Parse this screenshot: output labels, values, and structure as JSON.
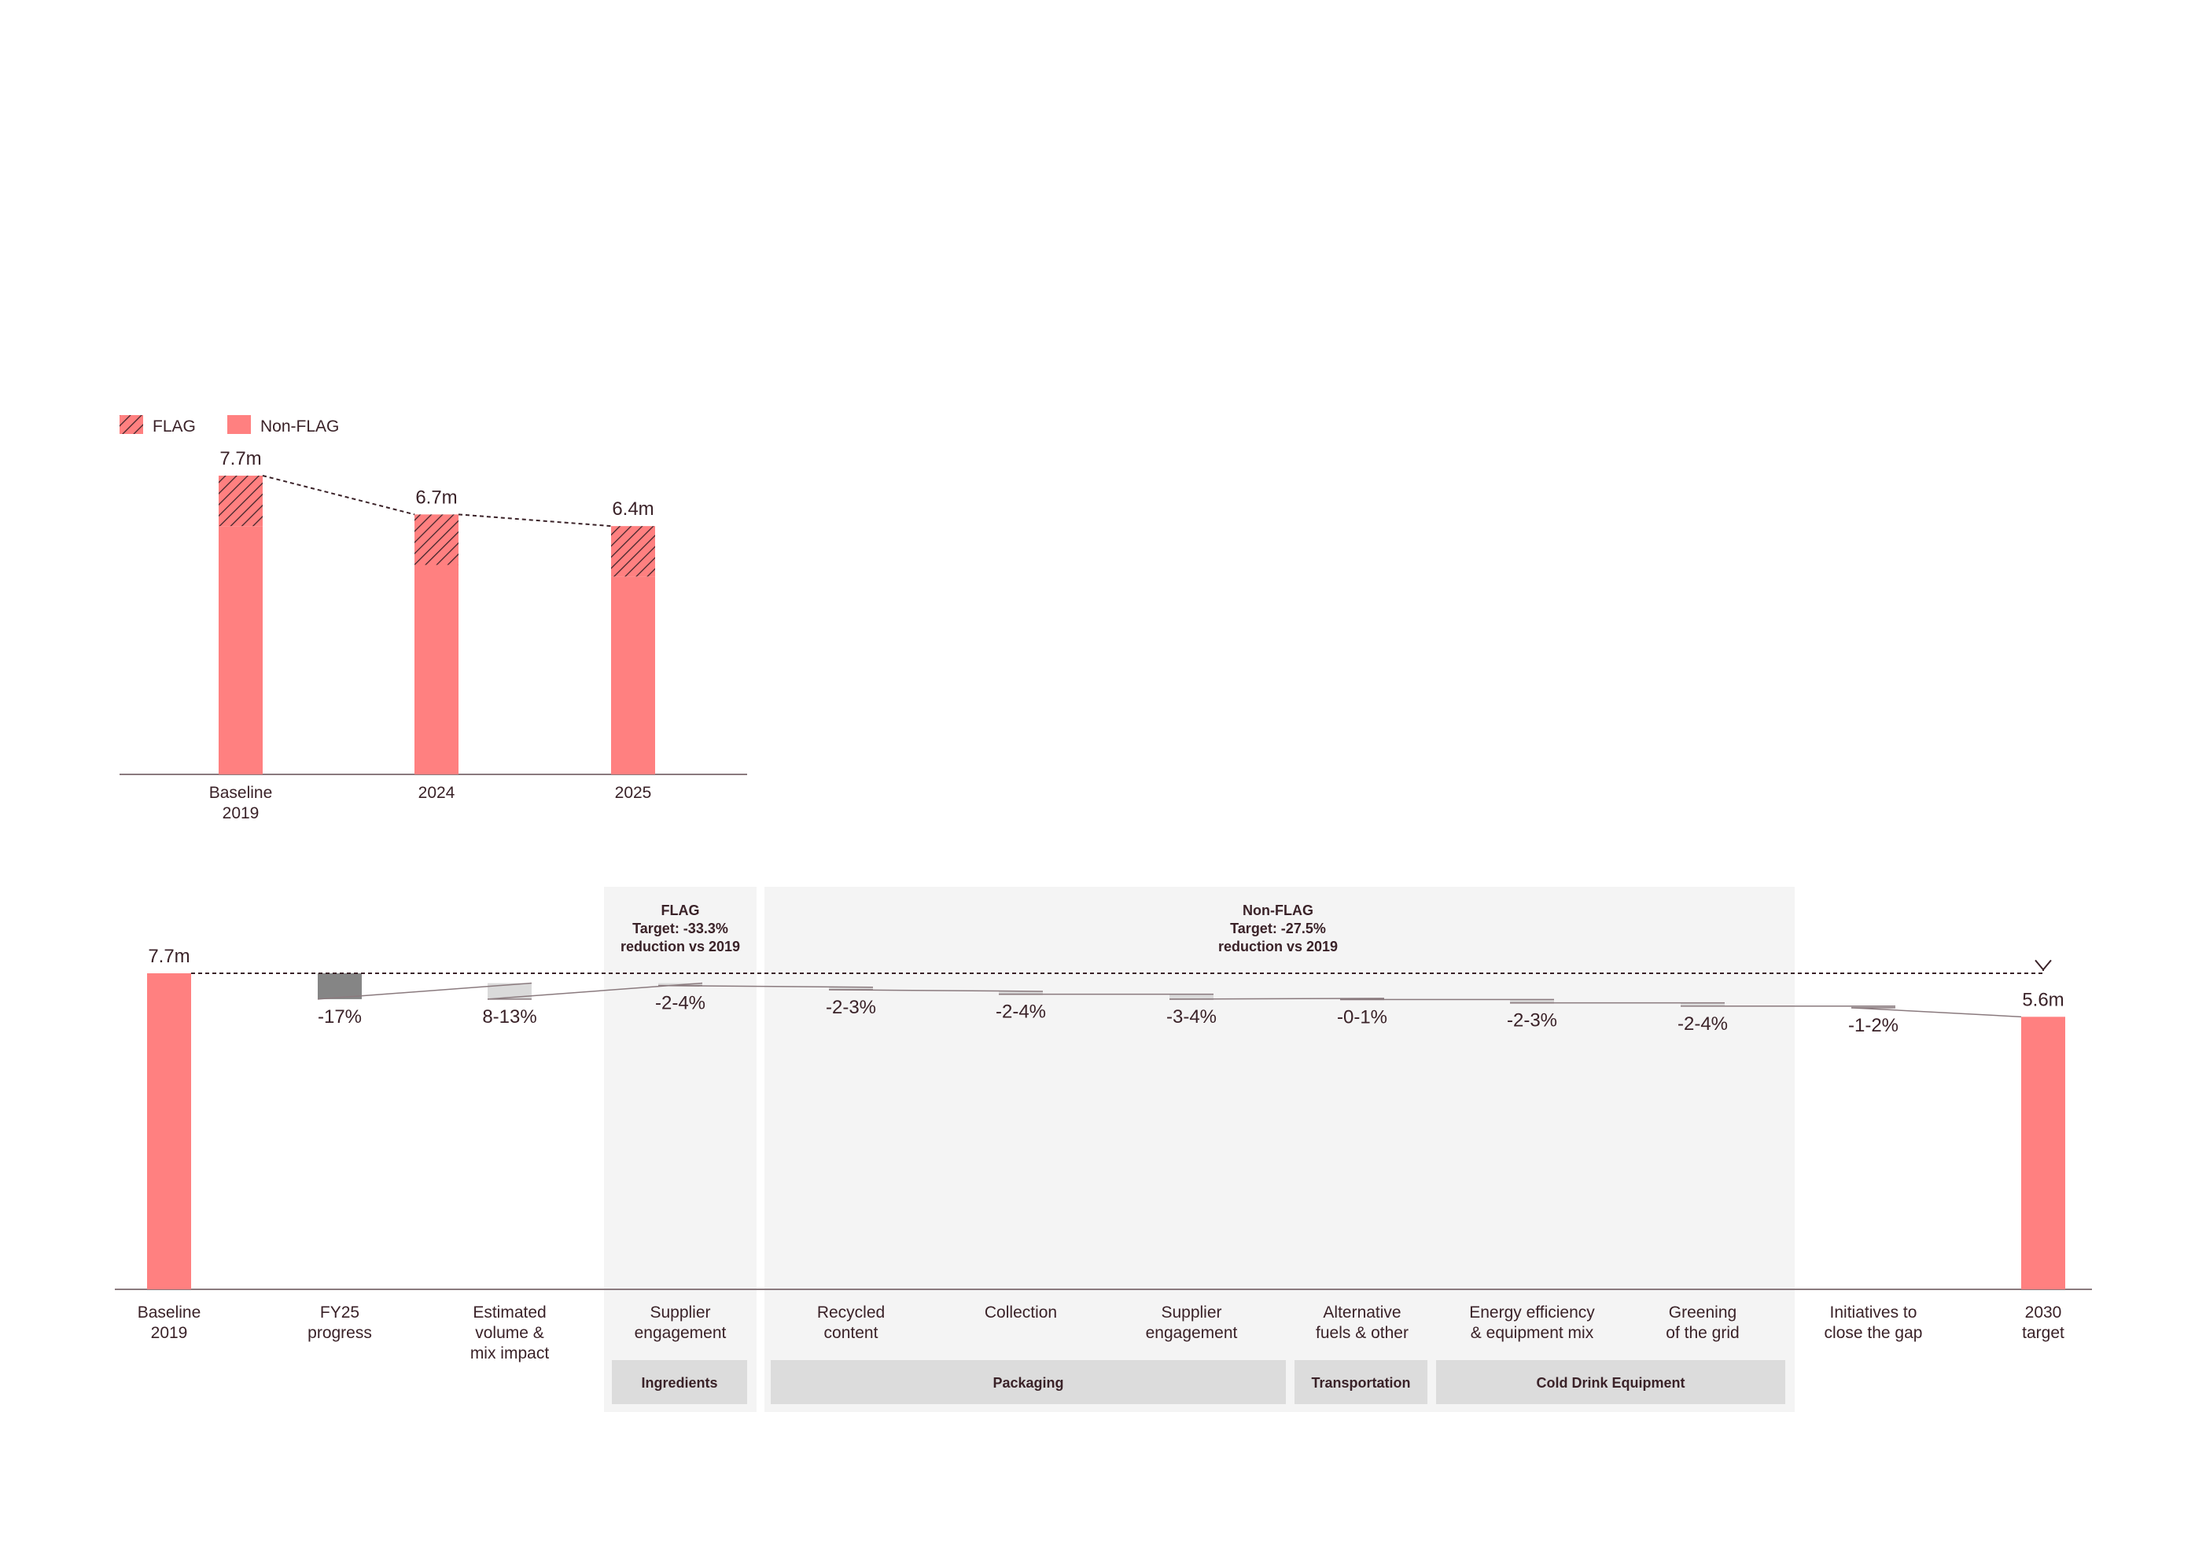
{
  "legend": {
    "items": [
      {
        "name": "FLAG",
        "pattern": "hatched"
      },
      {
        "name": "Non-FLAG",
        "pattern": "solid"
      }
    ]
  },
  "colors": {
    "accent": "#ff8080",
    "dark_text": "#3a2228",
    "progress_bar": "#858585",
    "light_bar": "#dadada",
    "panel_bg": "#f4f4f4",
    "category_box": "#dcdcdc",
    "axis": "#8a7a7e"
  },
  "chart_data": [
    {
      "type": "bar",
      "stacked": true,
      "categories": [
        "Baseline\n2019",
        "2024",
        "2025"
      ],
      "series": [
        {
          "name": "Non-FLAG",
          "values": [
            6.4,
            5.4,
            5.1
          ]
        },
        {
          "name": "FLAG",
          "values": [
            1.3,
            1.3,
            1.3
          ]
        }
      ],
      "totals": [
        "7.7m",
        "6.7m",
        "6.4m"
      ],
      "ylim": [
        0,
        8.5
      ],
      "legend": "top-left",
      "connector": "dashed"
    },
    {
      "type": "bar",
      "subtype": "waterfall",
      "categories": [
        "Baseline\n2019",
        "FY25\nprogress",
        "Estimated\nvolume &\nmix impact",
        "Supplier\nengagement",
        "Recycled\ncontent",
        "Collection",
        "Supplier\nengagement",
        "Alternative\nfuels & other",
        "Energy efficiency\n& equipment mix",
        "Greening\nof the grid",
        "Initiatives to\nclose the gap",
        "2030\ntarget"
      ],
      "labels": [
        "7.7m",
        "-17%",
        "8-13%",
        "-2-4%",
        "-2-3%",
        "-2-4%",
        "-3-4%",
        "-0-1%",
        "-2-3%",
        "-2-4%",
        "-1-2%",
        "5.6m"
      ],
      "bars": [
        {
          "kind": "total",
          "from": 0,
          "to": 7.7
        },
        {
          "kind": "progress",
          "from": 7.7,
          "to": 6.4
        },
        {
          "kind": "increase",
          "from": 6.4,
          "to": 7.2
        },
        {
          "kind": "decrease",
          "from": 7.2,
          "to": 7.0
        },
        {
          "kind": "decrease",
          "from": 6.98,
          "to": 6.8
        },
        {
          "kind": "decrease",
          "from": 6.78,
          "to": 6.6
        },
        {
          "kind": "decrease",
          "from": 6.6,
          "to": 6.36
        },
        {
          "kind": "decrease",
          "from": 6.36,
          "to": 6.3
        },
        {
          "kind": "decrease",
          "from": 6.3,
          "to": 6.13
        },
        {
          "kind": "decrease",
          "from": 6.13,
          "to": 5.93
        },
        {
          "kind": "decrease",
          "from": 5.93,
          "to": 5.85
        },
        {
          "kind": "total",
          "from": 0,
          "to": 5.6
        }
      ],
      "ylim": [
        0,
        7.7
      ],
      "groups": [
        {
          "title": [
            "FLAG",
            "Target: -33.3%",
            "reduction vs 2019"
          ],
          "from": 3,
          "to": 3
        },
        {
          "title": [
            "Non-FLAG",
            "Target: -27.5%",
            "reduction vs 2019"
          ],
          "from": 4,
          "to": 9
        }
      ],
      "categories_groups": [
        {
          "name": "Ingredients",
          "from": 3,
          "to": 3
        },
        {
          "name": "Packaging",
          "from": 4,
          "to": 6
        },
        {
          "name": "Transportation",
          "from": 7,
          "to": 7
        },
        {
          "name": "Cold Drink Equipment",
          "from": 8,
          "to": 9
        }
      ]
    }
  ]
}
